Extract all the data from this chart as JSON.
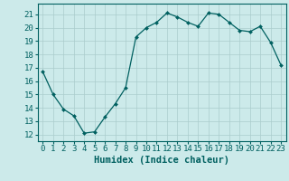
{
  "x": [
    0,
    1,
    2,
    3,
    4,
    5,
    6,
    7,
    8,
    9,
    10,
    11,
    12,
    13,
    14,
    15,
    16,
    17,
    18,
    19,
    20,
    21,
    22,
    23
  ],
  "y": [
    16.7,
    15.0,
    13.9,
    13.4,
    12.1,
    12.2,
    13.3,
    14.3,
    15.5,
    19.3,
    20.0,
    20.4,
    21.1,
    20.8,
    20.4,
    20.1,
    21.1,
    21.0,
    20.4,
    19.8,
    19.7,
    20.1,
    18.9,
    17.2
  ],
  "line_color": "#006060",
  "marker": "D",
  "marker_size": 2.0,
  "bg_color": "#cceaea",
  "grid_color": "#aacccc",
  "xlabel": "Humidex (Indice chaleur)",
  "xlim": [
    -0.5,
    23.5
  ],
  "ylim": [
    11.5,
    21.8
  ],
  "yticks": [
    12,
    13,
    14,
    15,
    16,
    17,
    18,
    19,
    20,
    21
  ],
  "xticks": [
    0,
    1,
    2,
    3,
    4,
    5,
    6,
    7,
    8,
    9,
    10,
    11,
    12,
    13,
    14,
    15,
    16,
    17,
    18,
    19,
    20,
    21,
    22,
    23
  ],
  "tick_color": "#006060",
  "label_color": "#006060",
  "tick_fontsize": 6.5,
  "xlabel_fontsize": 7.5
}
